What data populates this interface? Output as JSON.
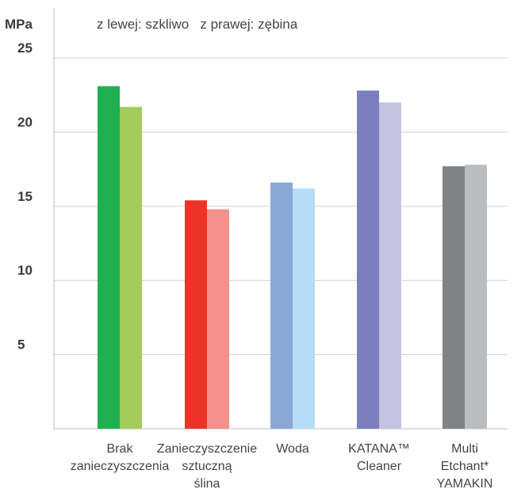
{
  "chart_data": {
    "type": "bar",
    "ylabel": "MPa",
    "subtitle": "z lewej: szkliwo   z prawej: zębina",
    "ylim": [
      0,
      25
    ],
    "yticks": [
      5,
      10,
      15,
      20,
      25
    ],
    "grid": true,
    "categories": [
      [
        "Brak",
        "zanieczyszczenia"
      ],
      [
        "Zanieczyszczenie",
        "sztuczną",
        "ślina"
      ],
      [
        "Woda"
      ],
      [
        "KATANA™",
        "Cleaner"
      ],
      [
        "Multi",
        "Etchant*",
        "YAMAKIN"
      ]
    ],
    "series": [
      {
        "name": "szkliwo",
        "values": [
          23.1,
          15.4,
          16.6,
          22.8,
          17.7
        ]
      },
      {
        "name": "zębina",
        "values": [
          21.7,
          14.8,
          16.2,
          22.0,
          17.8
        ]
      }
    ],
    "colors": [
      [
        "#1fb14f",
        "#a2cc5c"
      ],
      [
        "#ee3326",
        "#f5918b"
      ],
      [
        "#8aa8d6",
        "#b7dcf5"
      ],
      [
        "#7b7fbf",
        "#c5c3e2"
      ],
      [
        "#818285",
        "#bbbcbe"
      ]
    ]
  }
}
